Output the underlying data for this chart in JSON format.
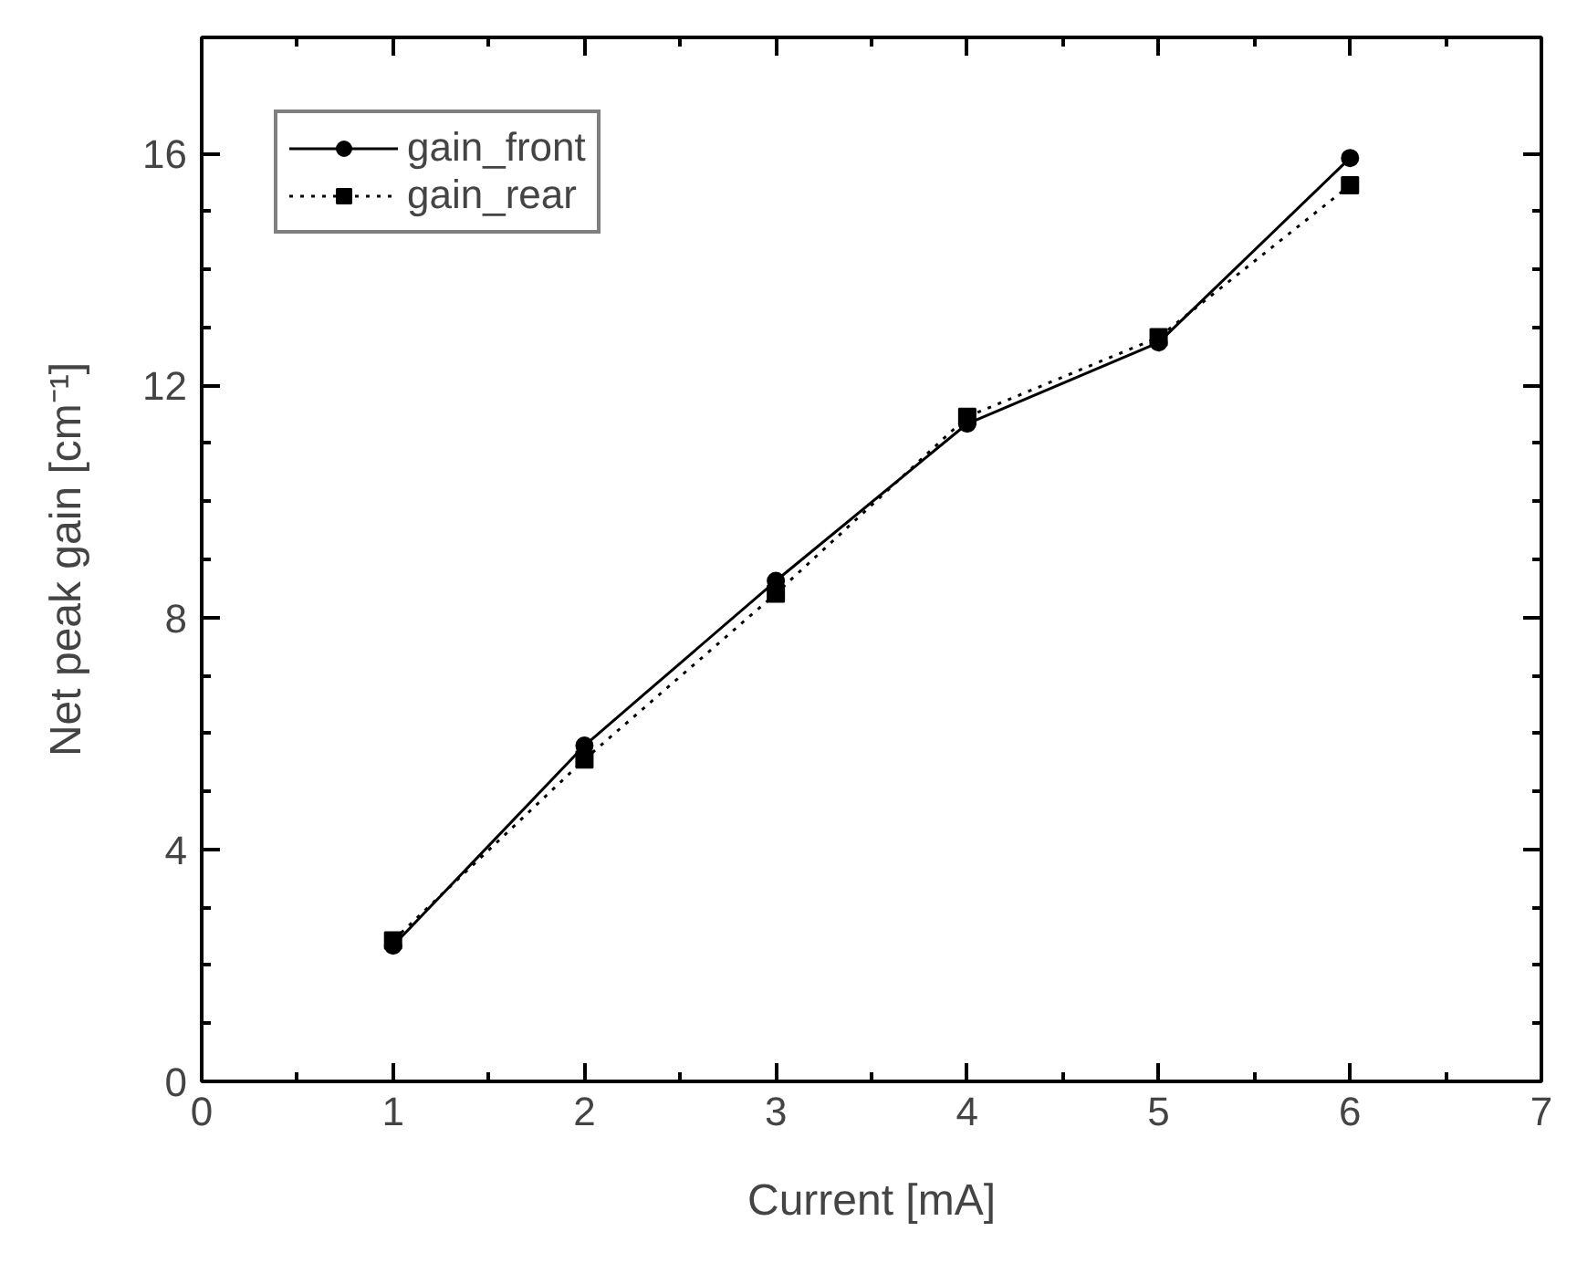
{
  "chart_data": {
    "type": "line",
    "xlabel": "Current [mA]",
    "ylabel": "Net peak gain [cm⁻¹]",
    "x": [
      1,
      2,
      3,
      4,
      5,
      6
    ],
    "series": [
      {
        "name": "gain_front",
        "color": "#000000",
        "values": [
          2.34,
          5.79,
          8.63,
          11.34,
          12.74,
          15.92
        ],
        "marker": "circle",
        "line_style": "solid"
      },
      {
        "name": "gain_rear",
        "color": "#000000",
        "values": [
          2.43,
          5.55,
          8.41,
          11.46,
          12.83,
          15.45
        ],
        "marker": "square",
        "line_style": "dotted"
      }
    ],
    "xlim": [
      0,
      7
    ],
    "ylim": [
      0,
      18
    ],
    "xticks": [
      0,
      1,
      2,
      3,
      4,
      5,
      6,
      7
    ],
    "yticks": [
      0,
      4,
      8,
      12,
      16
    ],
    "grid": false,
    "legend": "top left"
  }
}
